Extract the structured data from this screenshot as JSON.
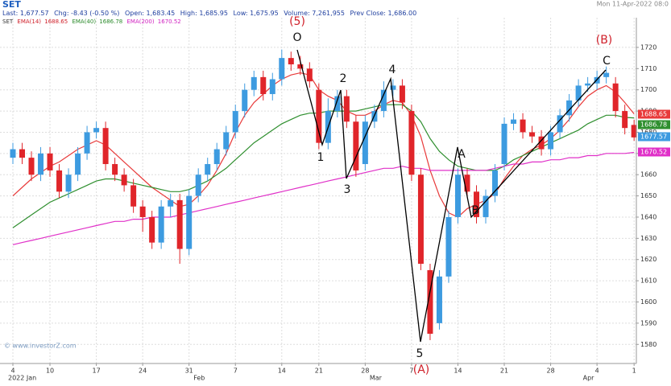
{
  "header": {
    "symbol": "SET",
    "date": "Mon 11-Apr-2022 08:0",
    "quote": [
      "Last: 1,677.57",
      "Chg: -8.43 (-0.50 %)",
      "Open: 1,683.45",
      "High: 1,685.95",
      "Low: 1,675.95",
      "Volume: 7,261,955",
      "Prev Close: 1,686.00"
    ]
  },
  "chart_data": {
    "type": "candlestick",
    "watermark": "© www.investorZ.com",
    "annotations": [
      "(5)",
      "O",
      "1",
      "2",
      "3",
      "4",
      "5",
      "(A)",
      "A",
      "B",
      "C",
      "(B)"
    ],
    "categories": [
      "4",
      null,
      null,
      null,
      "10",
      null,
      null,
      null,
      null,
      "17",
      null,
      null,
      null,
      null,
      "24",
      null,
      null,
      null,
      null,
      "31",
      null,
      null,
      null,
      null,
      "7",
      null,
      null,
      null,
      null,
      "14",
      null,
      null,
      null,
      "21",
      null,
      null,
      null,
      null,
      "28",
      null,
      null,
      null,
      null,
      "7",
      null,
      null,
      null,
      null,
      "14",
      null,
      null,
      null,
      null,
      "21",
      null,
      null,
      null,
      null,
      "28",
      null,
      null,
      null,
      null,
      "4",
      null,
      null,
      null,
      "1"
    ],
    "month_labels": [
      {
        "index": 0,
        "label": "2022 Jan"
      },
      {
        "index": 20,
        "label": "Feb"
      },
      {
        "index": 39,
        "label": "Mar"
      },
      {
        "index": 62,
        "label": "Apr"
      }
    ],
    "open": [
      1668,
      1672,
      1668,
      1660,
      1670,
      1662,
      1652,
      1660,
      1670,
      1680,
      1682,
      1665,
      1660,
      1655,
      1645,
      1640,
      1628,
      1645,
      1648,
      1625,
      1650,
      1660,
      1665,
      1672,
      1680,
      1690,
      1700,
      1706,
      1698,
      1705,
      1715,
      1712,
      1710,
      1700,
      1675,
      1690,
      1697,
      1685,
      1665,
      1685,
      1690,
      1700,
      1702,
      1690,
      1660,
      1615,
      1590,
      1612,
      1640,
      1660,
      1652,
      1640,
      1650,
      1665,
      1684,
      1686,
      1680,
      1678,
      1672,
      1680,
      1688,
      1695,
      1702,
      1703,
      1706,
      1703,
      1690,
      1683.45
    ],
    "high": [
      1675,
      1675,
      1671,
      1673,
      1673,
      1665,
      1663,
      1673,
      1683,
      1685,
      1685,
      1668,
      1663,
      1658,
      1648,
      1643,
      1648,
      1651,
      1651,
      1653,
      1663,
      1668,
      1675,
      1683,
      1693,
      1703,
      1709,
      1709,
      1708,
      1719,
      1718,
      1716,
      1713,
      1703,
      1696,
      1700,
      1700,
      1688,
      1688,
      1693,
      1704,
      1705,
      1705,
      1693,
      1663,
      1618,
      1615,
      1643,
      1663,
      1663,
      1655,
      1653,
      1665,
      1687,
      1689,
      1689,
      1683,
      1681,
      1683,
      1691,
      1698,
      1705,
      1706,
      1709,
      1711,
      1706,
      1693,
      1685.95
    ],
    "low": [
      1665,
      1665,
      1657,
      1657,
      1659,
      1649,
      1649,
      1657,
      1667,
      1677,
      1662,
      1657,
      1652,
      1642,
      1633,
      1625,
      1625,
      1640,
      1618,
      1622,
      1647,
      1657,
      1662,
      1669,
      1677,
      1687,
      1697,
      1695,
      1695,
      1702,
      1709,
      1707,
      1701,
      1672,
      1672,
      1687,
      1682,
      1659,
      1662,
      1682,
      1687,
      1697,
      1691,
      1657,
      1615,
      1582,
      1587,
      1609,
      1637,
      1649,
      1637,
      1637,
      1647,
      1662,
      1681,
      1677,
      1675,
      1669,
      1669,
      1677,
      1685,
      1692,
      1699,
      1700,
      1703,
      1687,
      1679,
      1675.95
    ],
    "close": [
      1672,
      1668,
      1660,
      1670,
      1662,
      1652,
      1660,
      1670,
      1680,
      1682,
      1665,
      1660,
      1655,
      1645,
      1640,
      1628,
      1645,
      1648,
      1625,
      1650,
      1660,
      1665,
      1672,
      1680,
      1690,
      1700,
      1706,
      1698,
      1705,
      1715,
      1712,
      1710,
      1704,
      1675,
      1690,
      1697,
      1685,
      1662,
      1685,
      1690,
      1700,
      1702,
      1694,
      1660,
      1618,
      1585,
      1612,
      1640,
      1660,
      1652,
      1640,
      1650,
      1662,
      1684,
      1686,
      1680,
      1678,
      1672,
      1680,
      1688,
      1695,
      1702,
      1703,
      1706,
      1708,
      1690,
      1682,
      1677.57
    ],
    "up_color": "#3d9be0",
    "down_color": "#e0252a",
    "series": [
      {
        "name": "EMA(14)",
        "color": "#e83a3a",
        "values": [
          1650,
          1654,
          1658,
          1661,
          1664,
          1666,
          1669,
          1672,
          1674,
          1676,
          1674,
          1670,
          1666,
          1662,
          1658,
          1654,
          1651,
          1648,
          1645,
          1646,
          1650,
          1655,
          1662,
          1670,
          1680,
          1688,
          1694,
          1698,
          1702,
          1705,
          1707,
          1708,
          1707,
          1700,
          1697,
          1695,
          1690,
          1688,
          1688,
          1690,
          1693,
          1695,
          1694,
          1688,
          1678,
          1662,
          1650,
          1642,
          1640,
          1644,
          1646,
          1648,
          1651,
          1658,
          1664,
          1669,
          1672,
          1674,
          1677,
          1681,
          1686,
          1692,
          1697,
          1700,
          1702,
          1699,
          1694,
          1688.65
        ]
      },
      {
        "name": "EMA(40)",
        "color": "#2f8f2f",
        "values": [
          1635,
          1638,
          1641,
          1644,
          1647,
          1649,
          1651,
          1653,
          1655,
          1657,
          1658,
          1658,
          1657,
          1656,
          1655,
          1654,
          1653,
          1652,
          1652,
          1653,
          1655,
          1657,
          1660,
          1663,
          1667,
          1671,
          1675,
          1678,
          1681,
          1684,
          1686,
          1688,
          1689,
          1689,
          1690,
          1690,
          1690,
          1690,
          1691,
          1692,
          1693,
          1693,
          1693,
          1690,
          1685,
          1677,
          1671,
          1667,
          1664,
          1663,
          1662,
          1662,
          1662,
          1664,
          1667,
          1669,
          1671,
          1673,
          1675,
          1677,
          1679,
          1681,
          1684,
          1686,
          1688,
          1688,
          1687,
          1686.78
        ]
      },
      {
        "name": "EMA(200)",
        "color": "#e030c8",
        "values": [
          1627,
          1628,
          1629,
          1630,
          1631,
          1632,
          1633,
          1634,
          1635,
          1636,
          1637,
          1638,
          1638,
          1639,
          1639,
          1640,
          1640,
          1640,
          1641,
          1642,
          1643,
          1644,
          1645,
          1646,
          1647,
          1648,
          1649,
          1650,
          1651,
          1652,
          1653,
          1654,
          1655,
          1656,
          1657,
          1658,
          1659,
          1660,
          1661,
          1662,
          1663,
          1663,
          1664,
          1663,
          1663,
          1662,
          1662,
          1662,
          1662,
          1662,
          1662,
          1662,
          1663,
          1664,
          1665,
          1665,
          1666,
          1666,
          1667,
          1667,
          1668,
          1668,
          1669,
          1669,
          1670,
          1670,
          1670,
          1670.52
        ]
      }
    ],
    "ylim": [
      1571,
      1734
    ],
    "yticks": [
      1580,
      1590,
      1600,
      1610,
      1620,
      1630,
      1640,
      1650,
      1660,
      1670,
      1680,
      1690,
      1700,
      1710,
      1720
    ],
    "grid": true
  }
}
